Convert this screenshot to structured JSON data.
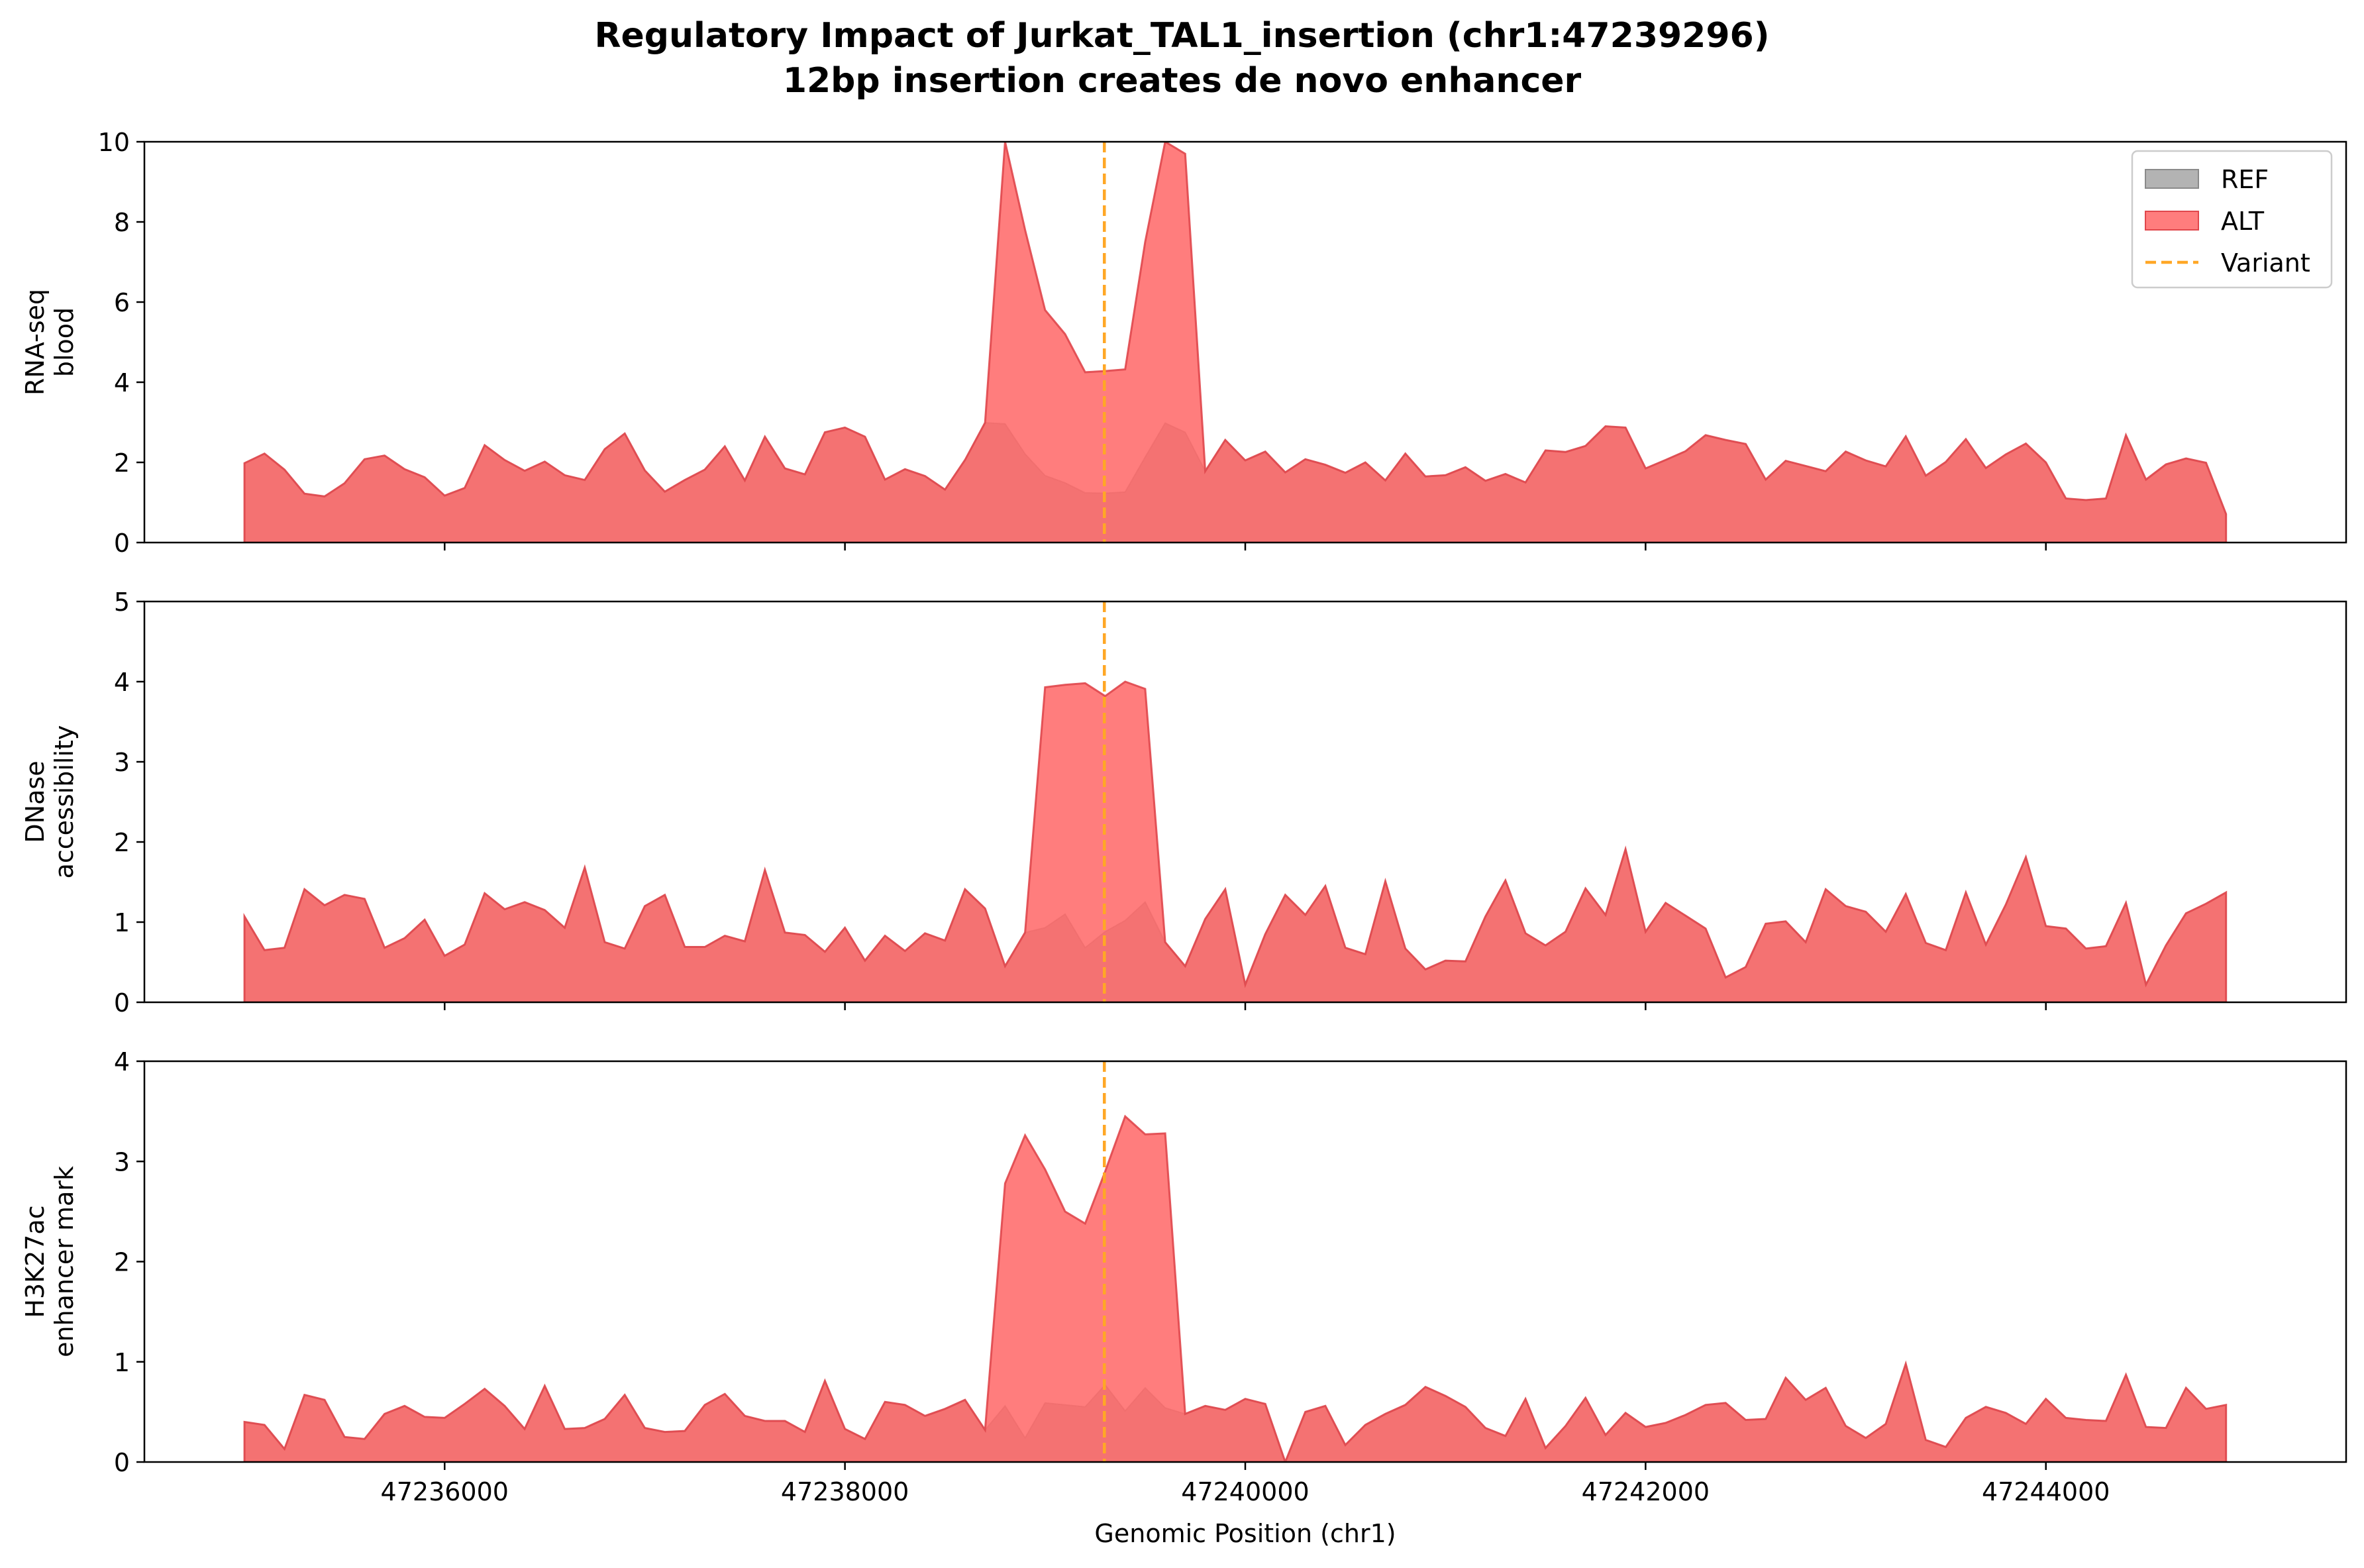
{
  "title": "Regulatory Impact of Jurkat_TAL1_insertion (chr1:47239296)",
  "subtitle": "12bp insertion creates de novo enhancer",
  "colors": {
    "ref_fill": "#999999",
    "alt_fill": "#ff6666",
    "alt_edge": "#e0474c",
    "variant_line": "#ffa726"
  },
  "legend": {
    "placement": "top-right",
    "items": [
      {
        "label": "REF",
        "kind": "patch",
        "color": "#999999"
      },
      {
        "label": "ALT",
        "kind": "patch",
        "color": "#ff6666"
      },
      {
        "label": "Variant",
        "kind": "dashed-line",
        "color": "#ffa726"
      }
    ]
  },
  "chart_data": {
    "type": "area",
    "xlabel": "Genomic Position (chr1)",
    "xlim": [
      47234500,
      47245500
    ],
    "xticks": [
      47236000,
      47238000,
      47240000,
      47242000,
      47244000
    ],
    "variant_position": 47239296,
    "x_start": 47235000,
    "x_step": 100,
    "panels": [
      {
        "ylabel_lines": [
          "RNA-seq",
          "blood"
        ],
        "ylim": [
          0,
          10
        ],
        "yticks": [
          0,
          2,
          4,
          6,
          8,
          10
        ],
        "ref": [
          1.98,
          2.22,
          1.82,
          1.22,
          1.15,
          1.48,
          2.08,
          2.17,
          1.83,
          1.63,
          1.17,
          1.36,
          2.43,
          2.06,
          1.79,
          2.02,
          1.68,
          1.56,
          2.33,
          2.72,
          1.8,
          1.27,
          1.56,
          1.82,
          2.4,
          1.55,
          2.64,
          1.85,
          1.7,
          2.75,
          2.87,
          2.64,
          1.57,
          1.83,
          1.66,
          1.32,
          2.06,
          2.99,
          2.96,
          2.21,
          1.67,
          1.49,
          1.24,
          1.23,
          1.26,
          2.13,
          2.98,
          2.75,
          1.78,
          2.56,
          2.05,
          2.27,
          1.75,
          2.08,
          1.94,
          1.74,
          2.0,
          1.55,
          2.22,
          1.65,
          1.68,
          1.88,
          1.54,
          1.71,
          1.5,
          2.3,
          2.26,
          2.41,
          2.9,
          2.87,
          1.85,
          2.06,
          2.28,
          2.68,
          2.56,
          2.46,
          1.57,
          2.04,
          1.91,
          1.78,
          2.27,
          2.05,
          1.9,
          2.65,
          1.67,
          2.01,
          2.58,
          1.86,
          2.2,
          2.47,
          2.0,
          1.1,
          1.06,
          1.1,
          2.68,
          1.57,
          1.95,
          2.1,
          1.99,
          0.71
        ],
        "alt_overrides": {
          "38": 10.0,
          "39": 7.8,
          "40": 5.8,
          "41": 5.2,
          "42": 4.25,
          "43": 4.28,
          "44": 4.32,
          "45": 7.5,
          "46": 10.0,
          "47": 9.7
        }
      },
      {
        "ylabel_lines": [
          "DNase",
          "accessibility"
        ],
        "ylim": [
          0,
          5
        ],
        "yticks": [
          0,
          1,
          2,
          3,
          4,
          5
        ],
        "ref": [
          1.07,
          0.65,
          0.68,
          1.41,
          1.21,
          1.34,
          1.29,
          0.68,
          0.8,
          1.03,
          0.58,
          0.72,
          1.36,
          1.16,
          1.25,
          1.15,
          0.93,
          1.68,
          0.75,
          0.67,
          1.2,
          1.34,
          0.69,
          0.69,
          0.83,
          0.76,
          1.65,
          0.87,
          0.84,
          0.63,
          0.93,
          0.52,
          0.83,
          0.64,
          0.86,
          0.77,
          1.41,
          1.17,
          0.45,
          0.87,
          0.93,
          1.1,
          0.68,
          0.88,
          1.02,
          1.25,
          0.75,
          0.45,
          1.04,
          1.41,
          0.22,
          0.85,
          1.34,
          1.09,
          1.45,
          0.68,
          0.6,
          1.51,
          0.67,
          0.41,
          0.52,
          0.51,
          1.07,
          1.52,
          0.86,
          0.71,
          0.88,
          1.42,
          1.09,
          1.91,
          0.88,
          1.24,
          1.08,
          0.92,
          0.31,
          0.44,
          0.98,
          1.01,
          0.75,
          1.41,
          1.2,
          1.13,
          0.88,
          1.35,
          0.74,
          0.65,
          1.37,
          0.72,
          1.22,
          1.81,
          0.95,
          0.92,
          0.67,
          0.7,
          1.24,
          0.22,
          0.71,
          1.11,
          1.23,
          1.37
        ],
        "alt_overrides": {
          "40": 3.93,
          "41": 3.96,
          "42": 3.98,
          "43": 3.82,
          "44": 4.0,
          "45": 3.91
        }
      },
      {
        "ylabel_lines": [
          "H3K27ac",
          "enhancer mark"
        ],
        "ylim": [
          0,
          4
        ],
        "yticks": [
          0,
          1,
          2,
          3,
          4
        ],
        "ref": [
          0.4,
          0.37,
          0.13,
          0.67,
          0.62,
          0.25,
          0.23,
          0.48,
          0.56,
          0.45,
          0.44,
          0.58,
          0.73,
          0.56,
          0.33,
          0.76,
          0.33,
          0.34,
          0.43,
          0.67,
          0.34,
          0.3,
          0.31,
          0.57,
          0.68,
          0.46,
          0.41,
          0.41,
          0.3,
          0.81,
          0.33,
          0.23,
          0.6,
          0.57,
          0.46,
          0.53,
          0.62,
          0.32,
          0.56,
          0.24,
          0.59,
          0.57,
          0.55,
          0.77,
          0.51,
          0.74,
          0.54,
          0.48,
          0.56,
          0.52,
          0.63,
          0.58,
          0.0,
          0.5,
          0.56,
          0.17,
          0.37,
          0.48,
          0.57,
          0.75,
          0.66,
          0.55,
          0.34,
          0.26,
          0.63,
          0.14,
          0.36,
          0.64,
          0.27,
          0.49,
          0.35,
          0.39,
          0.47,
          0.57,
          0.59,
          0.42,
          0.43,
          0.84,
          0.62,
          0.74,
          0.36,
          0.24,
          0.38,
          0.98,
          0.22,
          0.15,
          0.44,
          0.55,
          0.49,
          0.38,
          0.63,
          0.44,
          0.42,
          0.41,
          0.87,
          0.35,
          0.34,
          0.74,
          0.53,
          0.57
        ],
        "alt_overrides": {
          "38": 2.78,
          "39": 3.26,
          "40": 2.92,
          "41": 2.5,
          "42": 2.38,
          "43": 2.9,
          "44": 3.45,
          "45": 3.27,
          "46": 3.28
        }
      }
    ]
  }
}
